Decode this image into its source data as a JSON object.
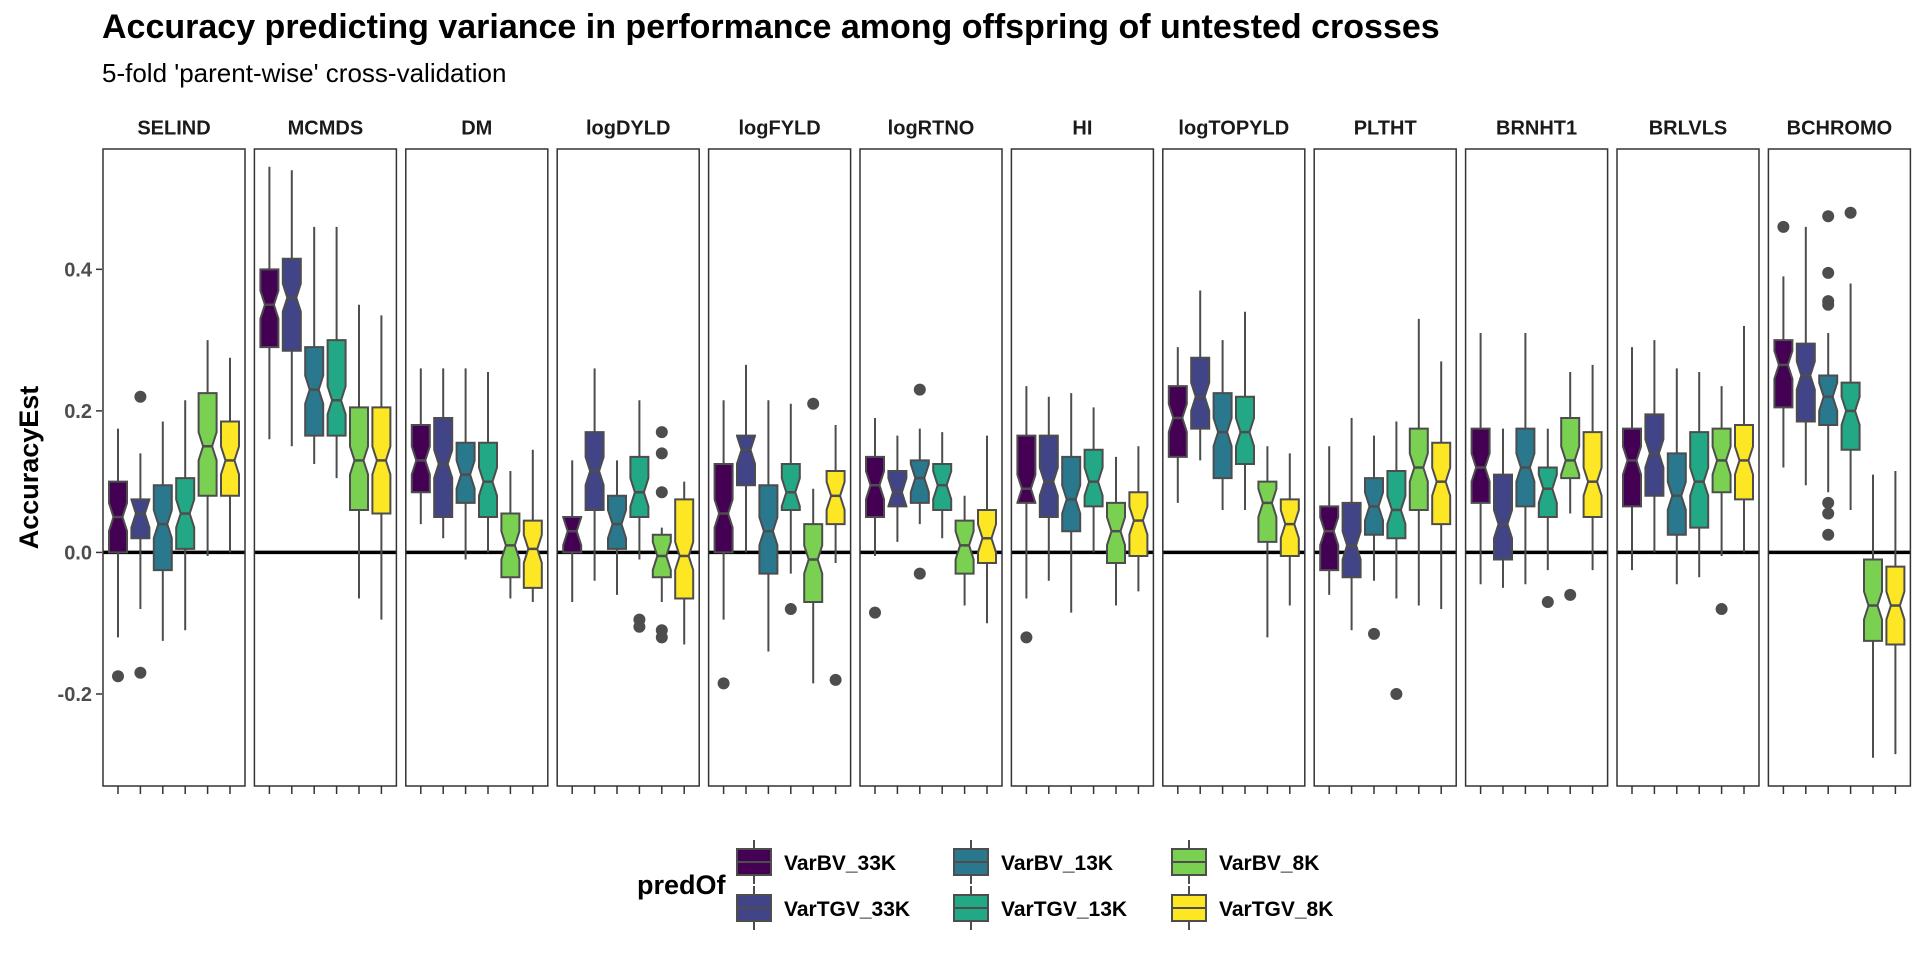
{
  "chart_data": {
    "type": "boxplot",
    "title": "Accuracy predicting variance in performance among offspring of untested crosses",
    "subtitle": "5-fold 'parent-wise' cross-validation",
    "xlabel": "",
    "ylabel": "AccuracyEst",
    "ylim": [
      -0.33,
      0.57
    ],
    "yticks": [
      -0.2,
      0.0,
      0.2,
      0.4
    ],
    "ytick_labels": [
      "-0.2",
      "0.0",
      "0.2",
      "0.4"
    ],
    "reference_line_y": 0.0,
    "grid": false,
    "legend_title": "predOf",
    "legend_position": "bottom",
    "series": [
      {
        "name": "VarBV_33K",
        "color": "#440154"
      },
      {
        "name": "VarTGV_33K",
        "color": "#414487"
      },
      {
        "name": "VarBV_13K",
        "color": "#2A788E"
      },
      {
        "name": "VarTGV_13K",
        "color": "#22A884"
      },
      {
        "name": "VarBV_8K",
        "color": "#7AD151"
      },
      {
        "name": "VarTGV_8K",
        "color": "#FDE725"
      }
    ],
    "facets": [
      {
        "name": "SELIND",
        "boxes": [
          {
            "lo": -0.12,
            "q1": 0.0,
            "med": 0.05,
            "q3": 0.1,
            "hi": 0.175,
            "out": [
              -0.175
            ]
          },
          {
            "lo": -0.08,
            "q1": 0.02,
            "med": 0.055,
            "q3": 0.075,
            "hi": 0.14,
            "out": [
              0.22,
              -0.17
            ]
          },
          {
            "lo": -0.125,
            "q1": -0.025,
            "med": 0.04,
            "q3": 0.095,
            "hi": 0.185,
            "out": []
          },
          {
            "lo": -0.11,
            "q1": 0.005,
            "med": 0.055,
            "q3": 0.105,
            "hi": 0.215,
            "out": []
          },
          {
            "lo": -0.005,
            "q1": 0.08,
            "med": 0.15,
            "q3": 0.225,
            "hi": 0.3,
            "out": []
          },
          {
            "lo": 0.0,
            "q1": 0.08,
            "med": 0.13,
            "q3": 0.185,
            "hi": 0.275,
            "out": []
          }
        ]
      },
      {
        "name": "MCMDS",
        "boxes": [
          {
            "lo": 0.16,
            "q1": 0.29,
            "med": 0.35,
            "q3": 0.4,
            "hi": 0.545,
            "out": []
          },
          {
            "lo": 0.15,
            "q1": 0.285,
            "med": 0.36,
            "q3": 0.415,
            "hi": 0.54,
            "out": []
          },
          {
            "lo": 0.125,
            "q1": 0.165,
            "med": 0.23,
            "q3": 0.29,
            "hi": 0.46,
            "out": []
          },
          {
            "lo": 0.105,
            "q1": 0.165,
            "med": 0.215,
            "q3": 0.3,
            "hi": 0.46,
            "out": []
          },
          {
            "lo": -0.065,
            "q1": 0.06,
            "med": 0.13,
            "q3": 0.205,
            "hi": 0.35,
            "out": []
          },
          {
            "lo": -0.095,
            "q1": 0.055,
            "med": 0.13,
            "q3": 0.205,
            "hi": 0.335,
            "out": []
          }
        ]
      },
      {
        "name": "DM",
        "boxes": [
          {
            "lo": 0.04,
            "q1": 0.085,
            "med": 0.13,
            "q3": 0.18,
            "hi": 0.26,
            "out": []
          },
          {
            "lo": 0.02,
            "q1": 0.05,
            "med": 0.125,
            "q3": 0.19,
            "hi": 0.26,
            "out": []
          },
          {
            "lo": -0.01,
            "q1": 0.07,
            "med": 0.11,
            "q3": 0.155,
            "hi": 0.26,
            "out": []
          },
          {
            "lo": 0.0,
            "q1": 0.05,
            "med": 0.1,
            "q3": 0.155,
            "hi": 0.255,
            "out": []
          },
          {
            "lo": -0.065,
            "q1": -0.035,
            "med": 0.01,
            "q3": 0.055,
            "hi": 0.115,
            "out": []
          },
          {
            "lo": -0.07,
            "q1": -0.05,
            "med": 0.005,
            "q3": 0.045,
            "hi": 0.145,
            "out": []
          }
        ]
      },
      {
        "name": "logDYLD",
        "boxes": [
          {
            "lo": -0.07,
            "q1": 0.0,
            "med": 0.03,
            "q3": 0.05,
            "hi": 0.13,
            "out": []
          },
          {
            "lo": -0.04,
            "q1": 0.06,
            "med": 0.115,
            "q3": 0.17,
            "hi": 0.26,
            "out": []
          },
          {
            "lo": -0.06,
            "q1": 0.005,
            "med": 0.04,
            "q3": 0.08,
            "hi": 0.13,
            "out": []
          },
          {
            "lo": -0.01,
            "q1": 0.05,
            "med": 0.085,
            "q3": 0.135,
            "hi": 0.215,
            "out": [
              -0.095,
              -0.105
            ]
          },
          {
            "lo": -0.07,
            "q1": -0.035,
            "med": -0.005,
            "q3": 0.025,
            "hi": 0.035,
            "out": [
              0.17,
              0.14,
              0.085,
              -0.11,
              -0.12
            ]
          },
          {
            "lo": -0.13,
            "q1": -0.065,
            "med": -0.005,
            "q3": 0.075,
            "hi": 0.1,
            "out": []
          }
        ]
      },
      {
        "name": "logFYLD",
        "boxes": [
          {
            "lo": -0.095,
            "q1": 0.0,
            "med": 0.055,
            "q3": 0.125,
            "hi": 0.215,
            "out": [
              -0.185
            ]
          },
          {
            "lo": 0.0,
            "q1": 0.095,
            "med": 0.145,
            "q3": 0.165,
            "hi": 0.265,
            "out": []
          },
          {
            "lo": -0.14,
            "q1": -0.03,
            "med": 0.03,
            "q3": 0.095,
            "hi": 0.215,
            "out": []
          },
          {
            "lo": -0.03,
            "q1": 0.06,
            "med": 0.085,
            "q3": 0.125,
            "hi": 0.21,
            "out": [
              -0.08
            ]
          },
          {
            "lo": -0.185,
            "q1": -0.07,
            "med": -0.01,
            "q3": 0.04,
            "hi": 0.09,
            "out": [
              0.21
            ]
          },
          {
            "lo": -0.015,
            "q1": 0.04,
            "med": 0.08,
            "q3": 0.115,
            "hi": 0.18,
            "out": [
              -0.18
            ]
          }
        ]
      },
      {
        "name": "logRTNO",
        "boxes": [
          {
            "lo": -0.005,
            "q1": 0.05,
            "med": 0.095,
            "q3": 0.135,
            "hi": 0.19,
            "out": [
              -0.085
            ]
          },
          {
            "lo": 0.015,
            "q1": 0.065,
            "med": 0.085,
            "q3": 0.115,
            "hi": 0.165,
            "out": []
          },
          {
            "lo": 0.04,
            "q1": 0.07,
            "med": 0.105,
            "q3": 0.13,
            "hi": 0.175,
            "out": [
              0.23,
              -0.03
            ]
          },
          {
            "lo": 0.02,
            "q1": 0.06,
            "med": 0.095,
            "q3": 0.125,
            "hi": 0.17,
            "out": []
          },
          {
            "lo": -0.075,
            "q1": -0.03,
            "med": 0.01,
            "q3": 0.045,
            "hi": 0.08,
            "out": []
          },
          {
            "lo": -0.1,
            "q1": -0.015,
            "med": 0.02,
            "q3": 0.06,
            "hi": 0.165,
            "out": []
          }
        ]
      },
      {
        "name": "HI",
        "boxes": [
          {
            "lo": -0.065,
            "q1": 0.07,
            "med": 0.09,
            "q3": 0.165,
            "hi": 0.235,
            "out": [
              -0.12
            ]
          },
          {
            "lo": -0.04,
            "q1": 0.05,
            "med": 0.1,
            "q3": 0.165,
            "hi": 0.22,
            "out": []
          },
          {
            "lo": -0.085,
            "q1": 0.03,
            "med": 0.075,
            "q3": 0.135,
            "hi": 0.225,
            "out": []
          },
          {
            "lo": 0.0,
            "q1": 0.065,
            "med": 0.1,
            "q3": 0.145,
            "hi": 0.205,
            "out": []
          },
          {
            "lo": -0.075,
            "q1": -0.015,
            "med": 0.03,
            "q3": 0.07,
            "hi": 0.135,
            "out": []
          },
          {
            "lo": -0.055,
            "q1": -0.005,
            "med": 0.045,
            "q3": 0.085,
            "hi": 0.15,
            "out": []
          }
        ]
      },
      {
        "name": "logTOPYLD",
        "boxes": [
          {
            "lo": 0.07,
            "q1": 0.135,
            "med": 0.19,
            "q3": 0.235,
            "hi": 0.29,
            "out": []
          },
          {
            "lo": 0.13,
            "q1": 0.175,
            "med": 0.22,
            "q3": 0.275,
            "hi": 0.37,
            "out": []
          },
          {
            "lo": 0.06,
            "q1": 0.105,
            "med": 0.17,
            "q3": 0.225,
            "hi": 0.3,
            "out": []
          },
          {
            "lo": 0.06,
            "q1": 0.125,
            "med": 0.17,
            "q3": 0.22,
            "hi": 0.34,
            "out": []
          },
          {
            "lo": -0.12,
            "q1": 0.015,
            "med": 0.07,
            "q3": 0.1,
            "hi": 0.15,
            "out": []
          },
          {
            "lo": -0.075,
            "q1": -0.005,
            "med": 0.04,
            "q3": 0.075,
            "hi": 0.14,
            "out": []
          }
        ]
      },
      {
        "name": "PLTHT",
        "boxes": [
          {
            "lo": -0.06,
            "q1": -0.025,
            "med": 0.03,
            "q3": 0.065,
            "hi": 0.15,
            "out": []
          },
          {
            "lo": -0.11,
            "q1": -0.035,
            "med": 0.01,
            "q3": 0.07,
            "hi": 0.19,
            "out": []
          },
          {
            "lo": -0.04,
            "q1": 0.025,
            "med": 0.065,
            "q3": 0.105,
            "hi": 0.165,
            "out": [
              -0.115
            ]
          },
          {
            "lo": -0.065,
            "q1": 0.02,
            "med": 0.06,
            "q3": 0.115,
            "hi": 0.185,
            "out": [
              -0.2
            ]
          },
          {
            "lo": -0.075,
            "q1": 0.06,
            "med": 0.12,
            "q3": 0.175,
            "hi": 0.33,
            "out": []
          },
          {
            "lo": -0.08,
            "q1": 0.04,
            "med": 0.1,
            "q3": 0.155,
            "hi": 0.27,
            "out": []
          }
        ]
      },
      {
        "name": "BRNHT1",
        "boxes": [
          {
            "lo": -0.045,
            "q1": 0.07,
            "med": 0.12,
            "q3": 0.175,
            "hi": 0.31,
            "out": []
          },
          {
            "lo": -0.05,
            "q1": -0.01,
            "med": 0.04,
            "q3": 0.11,
            "hi": 0.175,
            "out": []
          },
          {
            "lo": -0.045,
            "q1": 0.065,
            "med": 0.12,
            "q3": 0.175,
            "hi": 0.31,
            "out": []
          },
          {
            "lo": -0.025,
            "q1": 0.05,
            "med": 0.09,
            "q3": 0.12,
            "hi": 0.175,
            "out": [
              -0.07
            ]
          },
          {
            "lo": 0.055,
            "q1": 0.105,
            "med": 0.13,
            "q3": 0.19,
            "hi": 0.255,
            "out": [
              -0.06
            ]
          },
          {
            "lo": -0.025,
            "q1": 0.05,
            "med": 0.1,
            "q3": 0.17,
            "hi": 0.265,
            "out": []
          }
        ]
      },
      {
        "name": "BRLVLS",
        "boxes": [
          {
            "lo": -0.025,
            "q1": 0.065,
            "med": 0.13,
            "q3": 0.175,
            "hi": 0.29,
            "out": []
          },
          {
            "lo": 0.0,
            "q1": 0.08,
            "med": 0.14,
            "q3": 0.195,
            "hi": 0.3,
            "out": []
          },
          {
            "lo": -0.045,
            "q1": 0.025,
            "med": 0.08,
            "q3": 0.14,
            "hi": 0.26,
            "out": []
          },
          {
            "lo": -0.035,
            "q1": 0.035,
            "med": 0.1,
            "q3": 0.17,
            "hi": 0.255,
            "out": []
          },
          {
            "lo": -0.005,
            "q1": 0.085,
            "med": 0.13,
            "q3": 0.175,
            "hi": 0.235,
            "out": [
              -0.08
            ]
          },
          {
            "lo": 0.0,
            "q1": 0.075,
            "med": 0.13,
            "q3": 0.18,
            "hi": 0.32,
            "out": []
          }
        ]
      },
      {
        "name": "BCHROMO",
        "boxes": [
          {
            "lo": 0.12,
            "q1": 0.205,
            "med": 0.265,
            "q3": 0.3,
            "hi": 0.39,
            "out": [
              0.46
            ]
          },
          {
            "lo": 0.095,
            "q1": 0.185,
            "med": 0.25,
            "q3": 0.295,
            "hi": 0.46,
            "out": []
          },
          {
            "lo": 0.085,
            "q1": 0.18,
            "med": 0.22,
            "q3": 0.25,
            "hi": 0.31,
            "out": [
              0.475,
              0.395,
              0.355,
              0.35,
              0.07,
              0.055,
              0.025
            ]
          },
          {
            "lo": 0.06,
            "q1": 0.145,
            "med": 0.2,
            "q3": 0.24,
            "hi": 0.38,
            "out": [
              0.48
            ]
          },
          {
            "lo": -0.29,
            "q1": -0.125,
            "med": -0.075,
            "q3": -0.01,
            "hi": 0.11,
            "out": []
          },
          {
            "lo": -0.285,
            "q1": -0.13,
            "med": -0.075,
            "q3": -0.02,
            "hi": 0.115,
            "out": []
          }
        ]
      }
    ]
  }
}
